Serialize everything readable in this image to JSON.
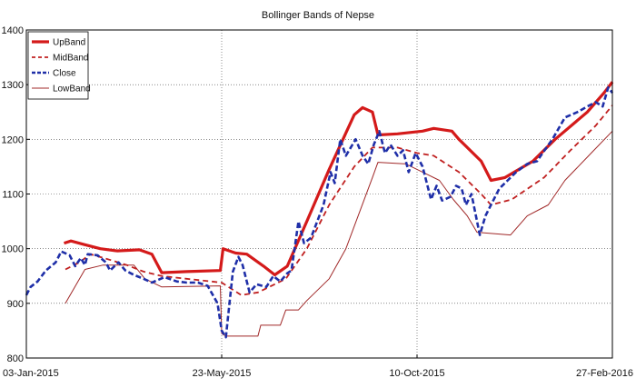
{
  "chart_data": {
    "type": "line",
    "title": "Bollinger Bands of Nepse",
    "xlabel": "",
    "ylabel": "",
    "ylim": [
      800,
      1400
    ],
    "yticks": [
      800,
      900,
      1000,
      1100,
      1200,
      1300,
      1400
    ],
    "xlim": [
      "2015-01-03",
      "2016-02-27"
    ],
    "xtick_labels": [
      "03-Jan-2015",
      "23-May-2015",
      "10-Oct-2015",
      "27-Feb-2016"
    ],
    "xtick_dates": [
      "2015-01-03",
      "2015-05-23",
      "2015-10-10",
      "2016-02-27"
    ],
    "grid": true,
    "legend_position": "top-left",
    "series": [
      {
        "name": "UpBand",
        "color": "#d41a1a",
        "style": "solid-thick",
        "points": [
          [
            "2015-01-30",
            1010
          ],
          [
            "2015-02-04",
            1014
          ],
          [
            "2015-02-13",
            1008
          ],
          [
            "2015-02-25",
            1000
          ],
          [
            "2015-03-09",
            996
          ],
          [
            "2015-03-25",
            998
          ],
          [
            "2015-04-03",
            990
          ],
          [
            "2015-04-10",
            956
          ],
          [
            "2015-04-28",
            958
          ],
          [
            "2015-05-22",
            960
          ],
          [
            "2015-05-24",
            1000
          ],
          [
            "2015-06-02",
            992
          ],
          [
            "2015-06-10",
            990
          ],
          [
            "2015-06-22",
            968
          ],
          [
            "2015-06-30",
            952
          ],
          [
            "2015-07-09",
            968
          ],
          [
            "2015-07-23",
            1050
          ],
          [
            "2015-08-08",
            1145
          ],
          [
            "2015-08-26",
            1245
          ],
          [
            "2015-09-01",
            1258
          ],
          [
            "2015-09-08",
            1250
          ],
          [
            "2015-09-12",
            1208
          ],
          [
            "2015-09-26",
            1210
          ],
          [
            "2015-10-14",
            1215
          ],
          [
            "2015-10-22",
            1220
          ],
          [
            "2015-11-04",
            1215
          ],
          [
            "2015-11-09",
            1200
          ],
          [
            "2015-11-25",
            1160
          ],
          [
            "2015-12-02",
            1125
          ],
          [
            "2015-12-12",
            1130
          ],
          [
            "2016-01-01",
            1160
          ],
          [
            "2016-01-17",
            1200
          ],
          [
            "2016-02-09",
            1250
          ],
          [
            "2016-02-21",
            1285
          ],
          [
            "2016-02-27",
            1305
          ]
        ]
      },
      {
        "name": "MidBand",
        "color": "#c02020",
        "style": "dashed",
        "points": [
          [
            "2015-01-31",
            962
          ],
          [
            "2015-02-10",
            975
          ],
          [
            "2015-02-18",
            990
          ],
          [
            "2015-03-06",
            978
          ],
          [
            "2015-03-16",
            970
          ],
          [
            "2015-03-28",
            958
          ],
          [
            "2015-04-10",
            950
          ],
          [
            "2015-05-23",
            938
          ],
          [
            "2015-06-06",
            915
          ],
          [
            "2015-06-18",
            920
          ],
          [
            "2015-06-30",
            935
          ],
          [
            "2015-07-08",
            945
          ],
          [
            "2015-07-23",
            1000
          ],
          [
            "2015-08-08",
            1080
          ],
          [
            "2015-08-26",
            1150
          ],
          [
            "2015-09-08",
            1185
          ],
          [
            "2015-09-26",
            1185
          ],
          [
            "2015-10-10",
            1175
          ],
          [
            "2015-10-22",
            1170
          ],
          [
            "2015-11-09",
            1140
          ],
          [
            "2015-11-25",
            1100
          ],
          [
            "2015-12-02",
            1080
          ],
          [
            "2015-12-17",
            1090
          ],
          [
            "2016-01-09",
            1130
          ],
          [
            "2016-01-28",
            1180
          ],
          [
            "2016-02-15",
            1225
          ],
          [
            "2016-02-27",
            1262
          ]
        ]
      },
      {
        "name": "Close",
        "color": "#1f2fa8",
        "style": "dashed-thick",
        "points": [
          [
            "2015-01-03",
            915
          ],
          [
            "2015-01-06",
            930
          ],
          [
            "2015-01-11",
            940
          ],
          [
            "2015-01-17",
            960
          ],
          [
            "2015-01-24",
            975
          ],
          [
            "2015-01-28",
            995
          ],
          [
            "2015-02-03",
            988
          ],
          [
            "2015-02-07",
            968
          ],
          [
            "2015-02-11",
            983
          ],
          [
            "2015-02-14",
            970
          ],
          [
            "2015-02-16",
            990
          ],
          [
            "2015-02-23",
            988
          ],
          [
            "2015-03-01",
            975
          ],
          [
            "2015-03-04",
            960
          ],
          [
            "2015-03-10",
            975
          ],
          [
            "2015-03-15",
            960
          ],
          [
            "2015-03-21",
            952
          ],
          [
            "2015-03-28",
            945
          ],
          [
            "2015-04-03",
            938
          ],
          [
            "2015-04-12",
            948
          ],
          [
            "2015-04-21",
            940
          ],
          [
            "2015-04-28",
            938
          ],
          [
            "2015-05-06",
            938
          ],
          [
            "2015-05-13",
            932
          ],
          [
            "2015-05-20",
            900
          ],
          [
            "2015-05-23",
            850
          ],
          [
            "2015-05-26",
            838
          ],
          [
            "2015-05-31",
            958
          ],
          [
            "2015-06-04",
            985
          ],
          [
            "2015-06-07",
            970
          ],
          [
            "2015-06-12",
            920
          ],
          [
            "2015-06-17",
            935
          ],
          [
            "2015-06-24",
            930
          ],
          [
            "2015-06-29",
            950
          ],
          [
            "2015-07-04",
            940
          ],
          [
            "2015-07-09",
            955
          ],
          [
            "2015-07-12",
            960
          ],
          [
            "2015-07-17",
            1050
          ],
          [
            "2015-07-21",
            1010
          ],
          [
            "2015-07-26",
            1020
          ],
          [
            "2015-08-04",
            1080
          ],
          [
            "2015-08-09",
            1140
          ],
          [
            "2015-08-12",
            1120
          ],
          [
            "2015-08-16",
            1200
          ],
          [
            "2015-08-20",
            1170
          ],
          [
            "2015-08-27",
            1200
          ],
          [
            "2015-09-01",
            1170
          ],
          [
            "2015-09-05",
            1155
          ],
          [
            "2015-09-09",
            1190
          ],
          [
            "2015-09-13",
            1215
          ],
          [
            "2015-09-17",
            1175
          ],
          [
            "2015-09-21",
            1190
          ],
          [
            "2015-09-26",
            1170
          ],
          [
            "2015-09-30",
            1180
          ],
          [
            "2015-10-04",
            1140
          ],
          [
            "2015-10-09",
            1175
          ],
          [
            "2015-10-14",
            1150
          ],
          [
            "2015-10-20",
            1090
          ],
          [
            "2015-10-24",
            1115
          ],
          [
            "2015-10-28",
            1088
          ],
          [
            "2015-11-03",
            1095
          ],
          [
            "2015-11-07",
            1115
          ],
          [
            "2015-11-11",
            1110
          ],
          [
            "2015-11-14",
            1080
          ],
          [
            "2015-11-18",
            1100
          ],
          [
            "2015-11-24",
            1025
          ],
          [
            "2015-11-28",
            1060
          ],
          [
            "2015-12-03",
            1085
          ],
          [
            "2015-12-08",
            1110
          ],
          [
            "2015-12-14",
            1125
          ],
          [
            "2015-12-20",
            1140
          ],
          [
            "2015-12-28",
            1155
          ],
          [
            "2016-01-04",
            1160
          ],
          [
            "2016-01-08",
            1175
          ],
          [
            "2016-01-15",
            1200
          ],
          [
            "2016-01-24",
            1240
          ],
          [
            "2016-02-02",
            1250
          ],
          [
            "2016-02-09",
            1260
          ],
          [
            "2016-02-15",
            1268
          ],
          [
            "2016-02-20",
            1260
          ],
          [
            "2016-02-24",
            1295
          ],
          [
            "2016-02-27",
            1285
          ]
        ]
      },
      {
        "name": "LowBand",
        "color": "#a02828",
        "style": "solid-thin",
        "points": [
          [
            "2015-01-31",
            900
          ],
          [
            "2015-02-14",
            962
          ],
          [
            "2015-02-27",
            970
          ],
          [
            "2015-03-21",
            970
          ],
          [
            "2015-03-29",
            945
          ],
          [
            "2015-04-10",
            930
          ],
          [
            "2015-05-22",
            932
          ],
          [
            "2015-05-23",
            845
          ],
          [
            "2015-05-26",
            840
          ],
          [
            "2015-06-18",
            840
          ],
          [
            "2015-06-20",
            860
          ],
          [
            "2015-07-04",
            860
          ],
          [
            "2015-07-08",
            888
          ],
          [
            "2015-07-17",
            888
          ],
          [
            "2015-07-23",
            905
          ],
          [
            "2015-08-08",
            945
          ],
          [
            "2015-08-20",
            1000
          ],
          [
            "2015-09-08",
            1130
          ],
          [
            "2015-09-12",
            1158
          ],
          [
            "2015-10-02",
            1155
          ],
          [
            "2015-10-14",
            1140
          ],
          [
            "2015-10-26",
            1125
          ],
          [
            "2015-11-05",
            1090
          ],
          [
            "2015-11-15",
            1060
          ],
          [
            "2015-11-22",
            1030
          ],
          [
            "2015-12-16",
            1025
          ],
          [
            "2015-12-28",
            1060
          ],
          [
            "2016-01-12",
            1080
          ],
          [
            "2016-01-24",
            1125
          ],
          [
            "2016-02-10",
            1170
          ],
          [
            "2016-02-27",
            1215
          ]
        ]
      }
    ]
  }
}
